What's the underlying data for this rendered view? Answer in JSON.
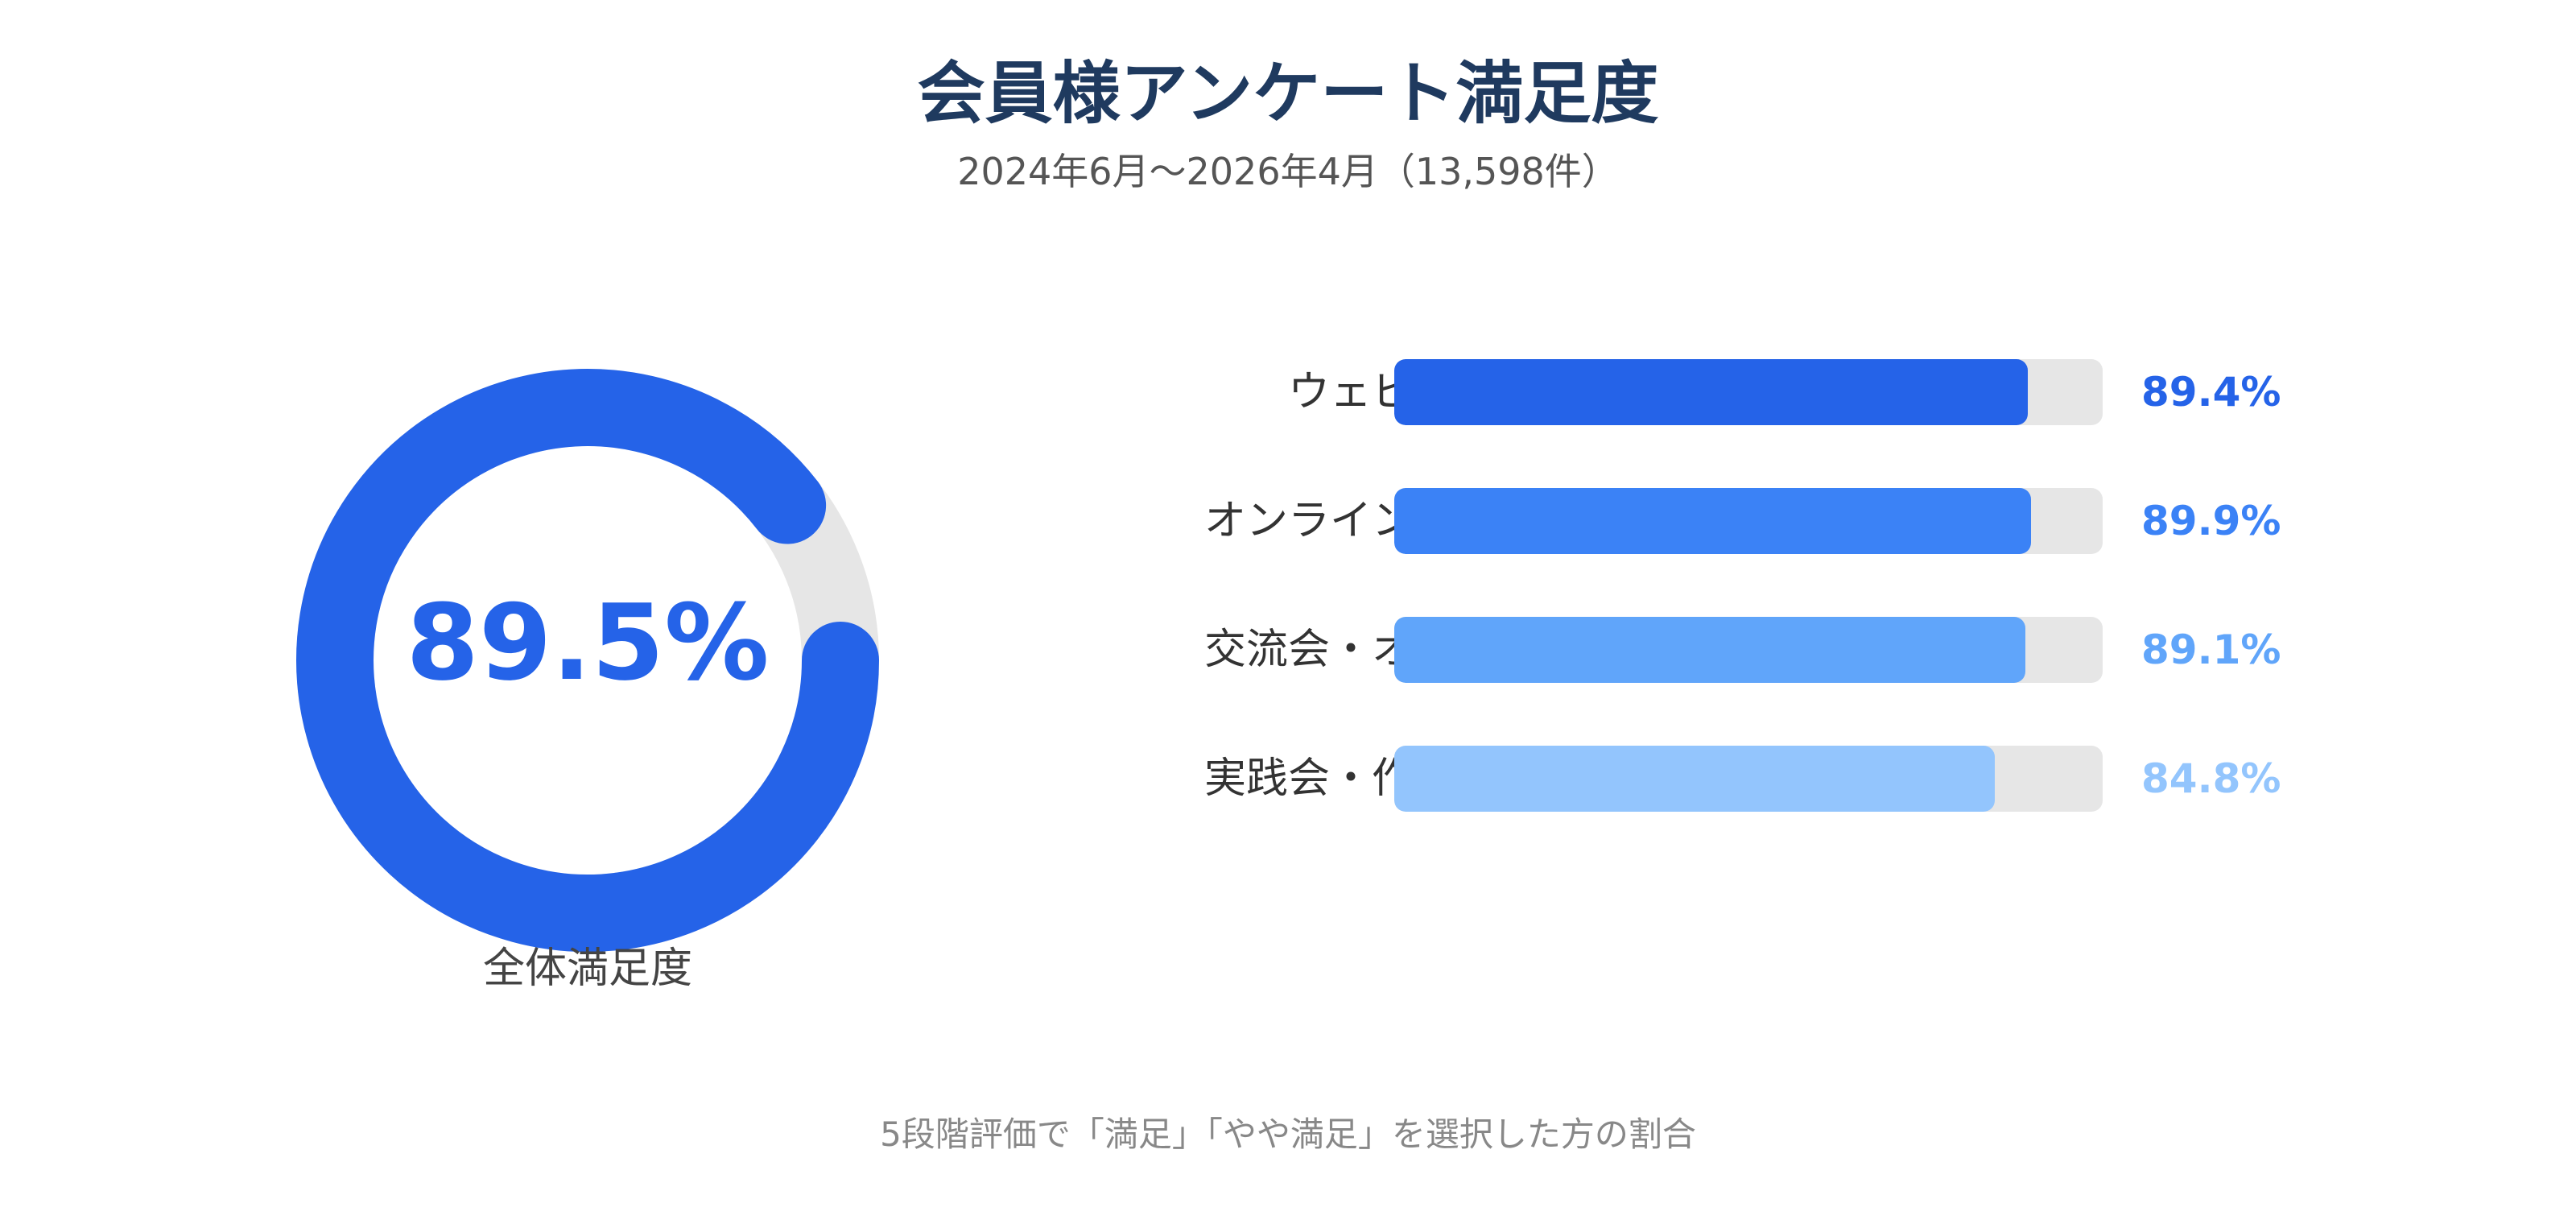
{
  "title": "会員様アンケート満足度",
  "subtitle": "2024年6月〜2026年4月（13,598件）",
  "footnote": "5段階評価で「満足」「やや満足」を選択した方の割合",
  "colors": {
    "donut_fill": "#2563e8",
    "donut_track": "#e6e6e6",
    "bar_track": "#e6e6e6"
  },
  "chart_data": [
    {
      "type": "pie",
      "label": "全体満足度",
      "value": 89.5,
      "value_text": "89.5%",
      "max": 100
    },
    {
      "type": "bar",
      "orientation": "horizontal",
      "categories": [
        "ウェビナー",
        "オンライン合宿",
        "交流会・オフ会",
        "実践会・作業会"
      ],
      "values": [
        89.4,
        89.9,
        89.1,
        84.8
      ],
      "value_labels": [
        "89.4%",
        "89.9%",
        "89.1%",
        "84.8%"
      ],
      "colors": [
        "#2563e8",
        "#3b82f6",
        "#60a5fa",
        "#93c5fd"
      ],
      "xlim": [
        0,
        100
      ]
    }
  ]
}
